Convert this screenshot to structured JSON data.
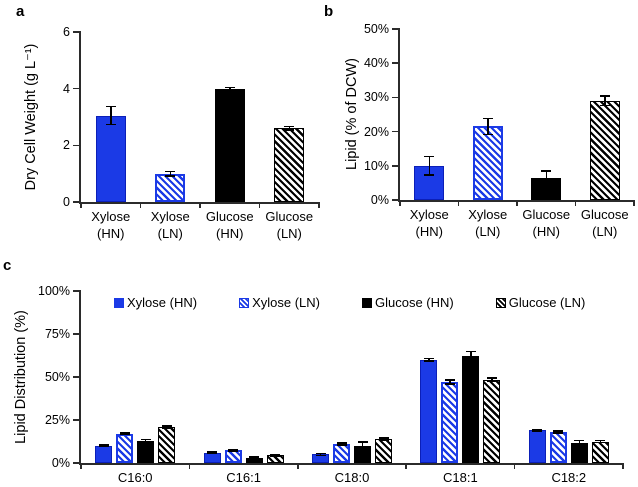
{
  "colors": {
    "blue": "#1b3ae6",
    "blue_dark": "#0b1fb8",
    "black": "#000000",
    "axis": "#2b2b2b"
  },
  "chart_data": [
    {
      "id": "a",
      "panel_label": "a",
      "type": "bar",
      "ylabel": "Dry Cell Weight (g L⁻¹)",
      "ylim": [
        0,
        6
      ],
      "ytick_labels": [
        "0",
        "2",
        "4",
        "6"
      ],
      "grid": false,
      "categories": [
        "Xylose\n(HN)",
        "Xylose\n(LN)",
        "Glucose\n(HN)",
        "Glucose\n(LN)"
      ],
      "values": [
        3.05,
        1.0,
        4.0,
        2.6
      ],
      "errors": [
        0.32,
        0.08,
        0.04,
        0.06
      ],
      "bar_styles": [
        "blue-solid",
        "blue-hatch",
        "black-solid",
        "black-hatch"
      ]
    },
    {
      "id": "b",
      "panel_label": "b",
      "type": "bar",
      "ylabel": "Lipid (% of DCW)",
      "ylim": [
        0,
        50
      ],
      "ytick_labels": [
        "0%",
        "10%",
        "20%",
        "30%",
        "40%",
        "50%"
      ],
      "grid": false,
      "categories": [
        "Xylose\n(HN)",
        "Xylose\n(LN)",
        "Glucose\n(HN)",
        "Glucose\n(LN)"
      ],
      "values": [
        10,
        21.5,
        6.5,
        29
      ],
      "errors": [
        2.7,
        2.4,
        2.0,
        1.4
      ],
      "bar_styles": [
        "blue-solid",
        "blue-hatch",
        "black-solid",
        "black-hatch"
      ]
    },
    {
      "id": "c",
      "panel_label": "c",
      "type": "grouped-bar",
      "ylabel": "Lipid Distribution (%)",
      "ylim": [
        0,
        100
      ],
      "ytick_labels": [
        "0%",
        "25%",
        "50%",
        "75%",
        "100%"
      ],
      "grid": false,
      "legend_position": "top-inside",
      "categories": [
        "C16:0",
        "C16:1",
        "C18:0",
        "C18:1",
        "C18:2"
      ],
      "series": [
        {
          "name": "Xylose (HN)",
          "style": "blue-solid",
          "values": [
            10,
            6,
            5,
            60,
            19
          ],
          "errors": [
            0.4,
            0.4,
            0.5,
            0.8,
            0.5
          ]
        },
        {
          "name": "Xylose (LN)",
          "style": "blue-hatch",
          "values": [
            17,
            7.5,
            11,
            47,
            18
          ],
          "errors": [
            0.5,
            0.4,
            0.5,
            1.2,
            0.5
          ]
        },
        {
          "name": "Glucose (HN)",
          "style": "black-solid",
          "values": [
            13,
            3,
            10,
            62.5,
            11.5
          ],
          "errors": [
            0.8,
            0.4,
            2.2,
            2.2,
            1.5
          ]
        },
        {
          "name": "Glucose (LN)",
          "style": "black-hatch",
          "values": [
            21,
            4.5,
            14,
            48.5,
            12.5
          ],
          "errors": [
            0.6,
            0.3,
            0.6,
            0.8,
            0.6
          ]
        }
      ]
    }
  ]
}
